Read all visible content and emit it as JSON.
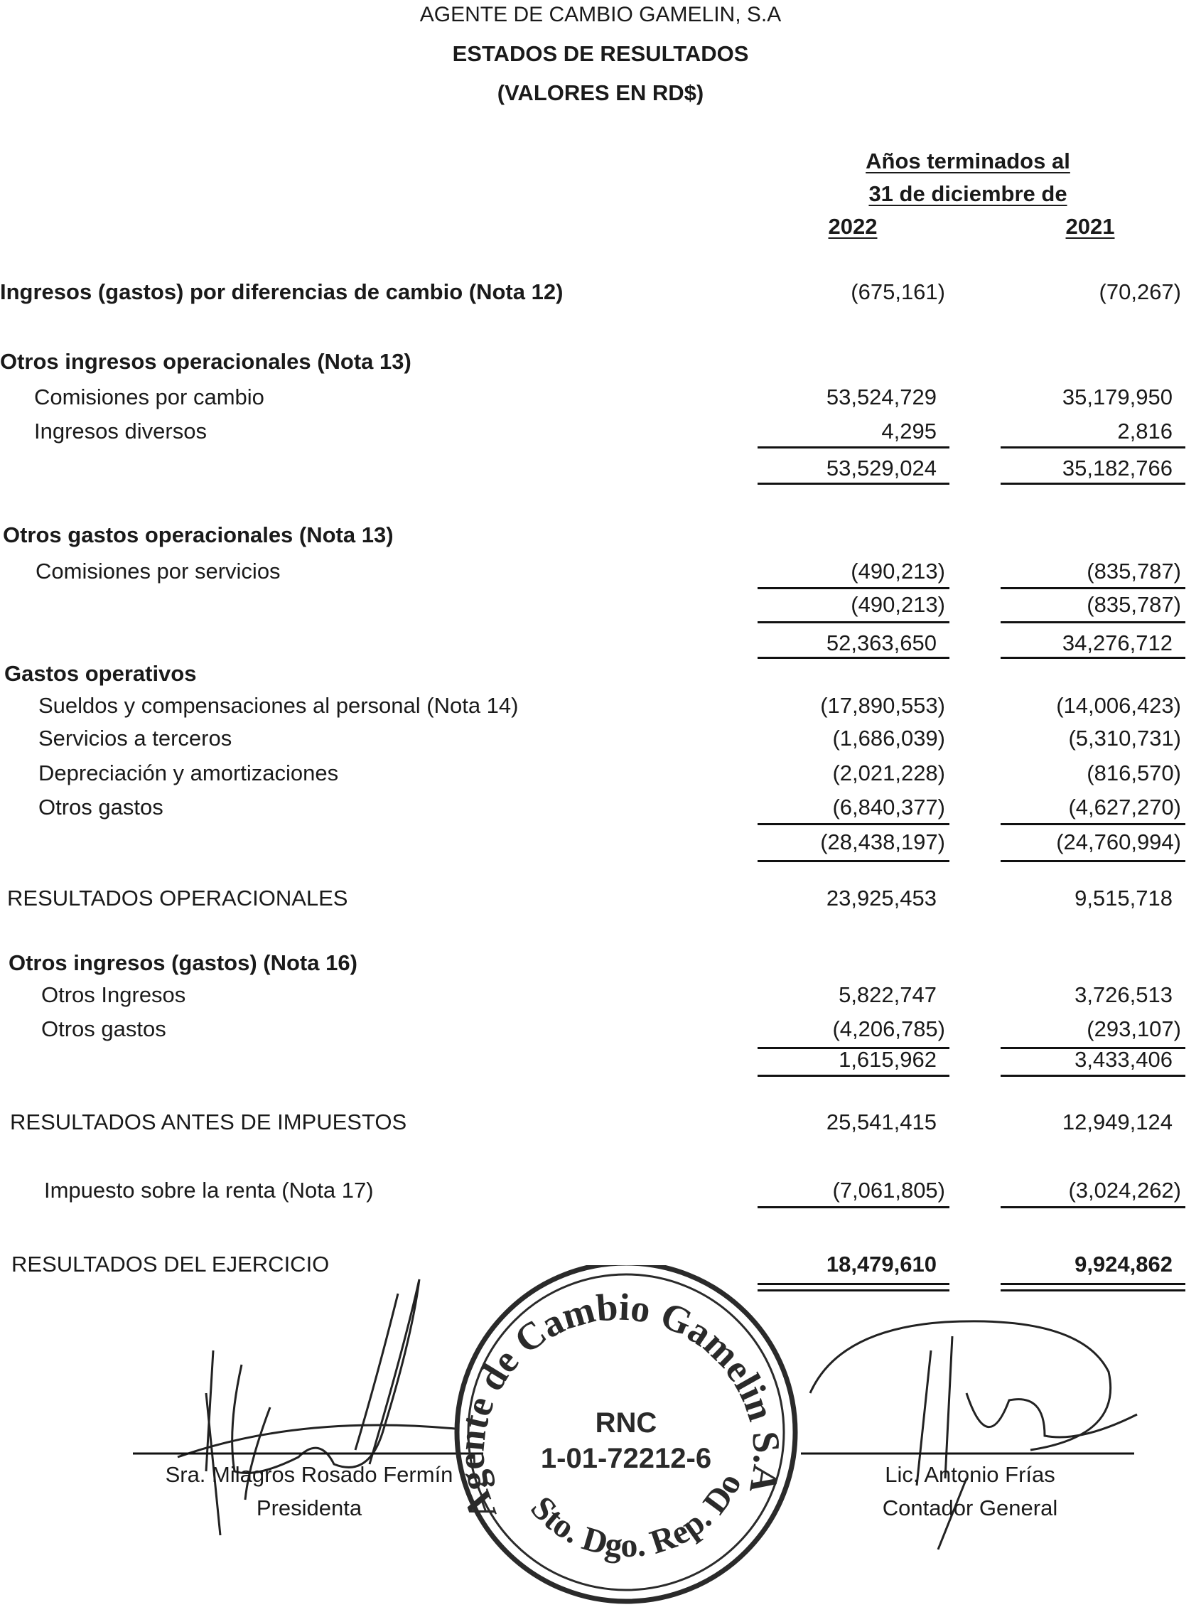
{
  "header": {
    "company": "AGENTE DE CAMBIO GAMELIN, S.A",
    "statement": "ESTADOS DE RESULTADOS",
    "currency": "(VALORES EN RD$)"
  },
  "columns": {
    "period_line1": "Años terminados al",
    "period_line2": "31 de diciembre de",
    "year1": "2022",
    "year2": "2021"
  },
  "rows": [
    {
      "label": "Ingresos (gastos) por diferencias de cambio (Nota 12)",
      "bold": true,
      "v2022": "(675,161)",
      "v2021": "(70,267)"
    },
    {
      "label": "Otros ingresos operacionales (Nota 13)",
      "bold": true
    },
    {
      "label": "Comisiones por cambio",
      "v2022": "53,524,729",
      "v2021": "35,179,950"
    },
    {
      "label": "Ingresos diversos",
      "v2022": "4,295",
      "v2021": "2,816"
    },
    {
      "label": "",
      "v2022": "53,529,024",
      "v2021": "35,182,766"
    },
    {
      "label": "Otros gastos operacionales (Nota 13)",
      "bold": true
    },
    {
      "label": "Comisiones por servicios",
      "v2022": "(490,213)",
      "v2021": "(835,787)"
    },
    {
      "label": "",
      "v2022": "(490,213)",
      "v2021": "(835,787)"
    },
    {
      "label": "",
      "v2022": "52,363,650",
      "v2021": "34,276,712"
    },
    {
      "label": "Gastos operativos",
      "bold": true
    },
    {
      "label": "Sueldos y compensaciones al personal (Nota 14)",
      "v2022": "(17,890,553)",
      "v2021": "(14,006,423)"
    },
    {
      "label": "Servicios a terceros",
      "v2022": "(1,686,039)",
      "v2021": "(5,310,731)"
    },
    {
      "label": "Depreciación y amortizaciones",
      "v2022": "(2,021,228)",
      "v2021": "(816,570)"
    },
    {
      "label": "Otros gastos",
      "v2022": "(6,840,377)",
      "v2021": "(4,627,270)"
    },
    {
      "label": "",
      "v2022": "(28,438,197)",
      "v2021": "(24,760,994)"
    },
    {
      "label": "RESULTADOS OPERACIONALES",
      "v2022": "23,925,453",
      "v2021": "9,515,718"
    },
    {
      "label": "Otros ingresos (gastos)  (Nota 16)",
      "bold": true
    },
    {
      "label": "Otros Ingresos",
      "v2022": "5,822,747",
      "v2021": "3,726,513"
    },
    {
      "label": "Otros gastos",
      "v2022": "(4,206,785)",
      "v2021": "(293,107)"
    },
    {
      "label": "",
      "v2022": "1,615,962",
      "v2021": "3,433,406"
    },
    {
      "label": "RESULTADOS ANTES DE IMPUESTOS",
      "v2022": "25,541,415",
      "v2021": "12,949,124"
    },
    {
      "label": "Impuesto sobre la renta (Nota 17)",
      "v2022": "(7,061,805)",
      "v2021": "(3,024,262)"
    },
    {
      "label": "RESULTADOS DEL EJERCICIO",
      "v2022": "18,479,610",
      "v2021": "9,924,862",
      "bold_values": true
    }
  ],
  "signatures": {
    "left_name": "Sra. Milagros Rosado Fermín",
    "left_title": "Presidenta",
    "right_name": "Lic. Antonio Frías",
    "right_title": "Contador General"
  },
  "stamp": {
    "arc_text": "Agente de Cambio Gamelin S.A",
    "bottom_text": "Sto. Dgo. Rep. Dom.",
    "rnc_label": "RNC",
    "rnc_number": "1-01-72212-6",
    "color": "#2a2a2a"
  }
}
